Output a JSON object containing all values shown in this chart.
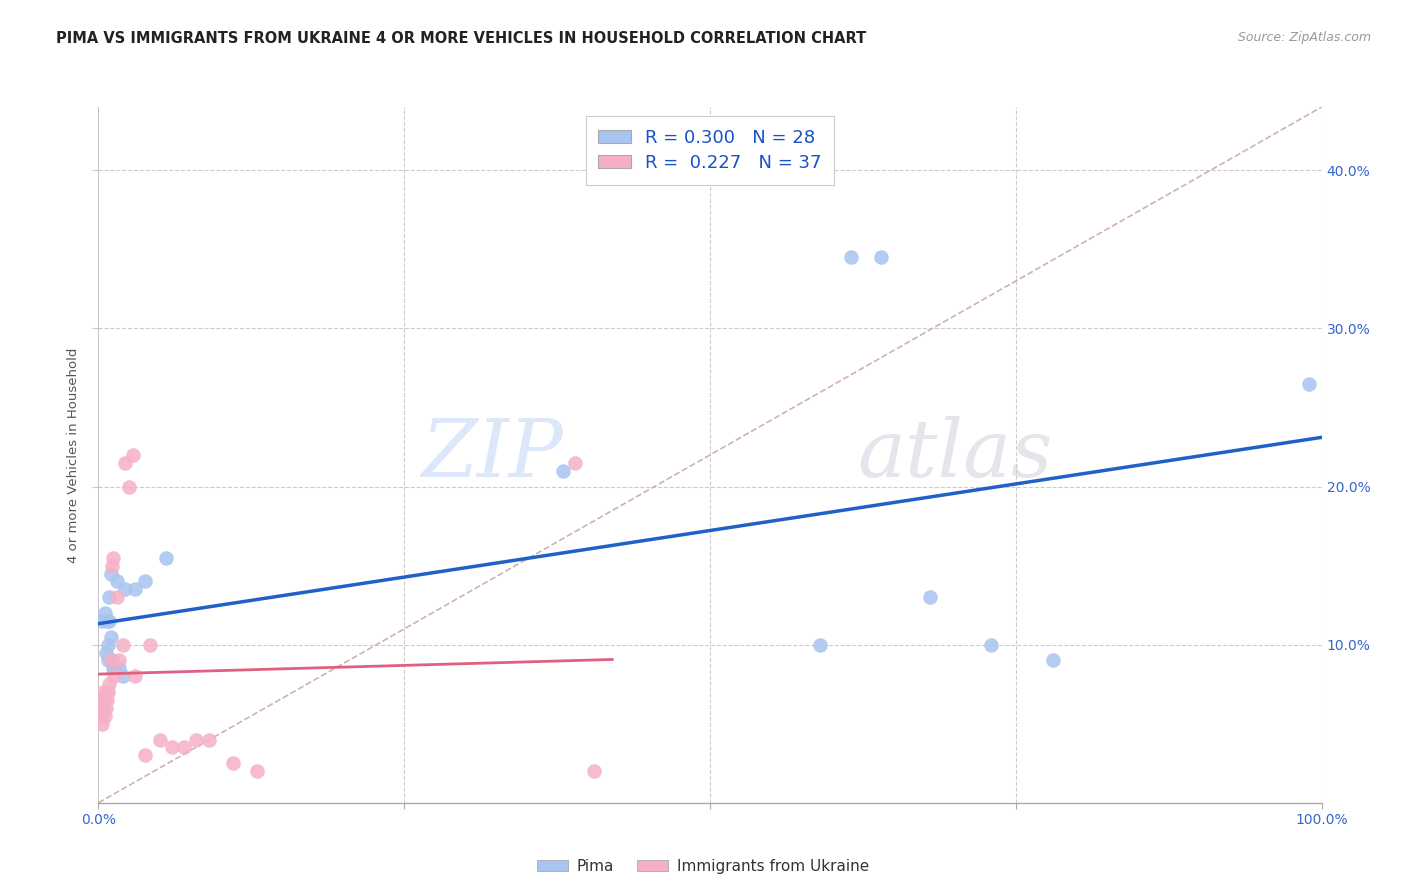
{
  "title": "PIMA VS IMMIGRANTS FROM UKRAINE 4 OR MORE VEHICLES IN HOUSEHOLD CORRELATION CHART",
  "source": "Source: ZipAtlas.com",
  "ylabel": "4 or more Vehicles in Household",
  "xmin": 0.0,
  "xmax": 1.0,
  "ymin": 0.0,
  "ymax": 0.44,
  "pima_r": 0.3,
  "pima_n": 28,
  "ukraine_r": 0.227,
  "ukraine_n": 37,
  "pima_color": "#a8c4f0",
  "ukraine_color": "#f5b0c5",
  "pima_line_color": "#2060c8",
  "ukraine_line_color": "#e06080",
  "diagonal_color": "#d0b0b8",
  "legend_label_pima": "Pima",
  "legend_label_ukraine": "Immigrants from Ukraine",
  "watermark_zip": "ZIP",
  "watermark_atlas": "atlas",
  "pima_x": [
    0.003,
    0.005,
    0.006,
    0.007,
    0.008,
    0.008,
    0.009,
    0.009,
    0.01,
    0.01,
    0.011,
    0.012,
    0.013,
    0.015,
    0.017,
    0.02,
    0.022,
    0.03,
    0.038,
    0.055,
    0.38,
    0.59,
    0.615,
    0.64,
    0.68,
    0.73,
    0.78,
    0.99
  ],
  "pima_y": [
    0.115,
    0.12,
    0.095,
    0.115,
    0.09,
    0.1,
    0.13,
    0.115,
    0.145,
    0.105,
    0.09,
    0.085,
    0.085,
    0.14,
    0.085,
    0.08,
    0.135,
    0.135,
    0.14,
    0.155,
    0.21,
    0.1,
    0.345,
    0.345,
    0.13,
    0.1,
    0.09,
    0.265
  ],
  "ukraine_x": [
    0.001,
    0.001,
    0.002,
    0.002,
    0.003,
    0.003,
    0.004,
    0.004,
    0.005,
    0.005,
    0.006,
    0.007,
    0.007,
    0.008,
    0.009,
    0.01,
    0.011,
    0.012,
    0.013,
    0.015,
    0.017,
    0.02,
    0.022,
    0.025,
    0.028,
    0.03,
    0.038,
    0.042,
    0.05,
    0.06,
    0.07,
    0.08,
    0.09,
    0.11,
    0.13,
    0.39,
    0.405
  ],
  "ukraine_y": [
    0.055,
    0.065,
    0.055,
    0.065,
    0.05,
    0.06,
    0.06,
    0.07,
    0.055,
    0.065,
    0.06,
    0.07,
    0.065,
    0.07,
    0.075,
    0.09,
    0.15,
    0.155,
    0.08,
    0.13,
    0.09,
    0.1,
    0.215,
    0.2,
    0.22,
    0.08,
    0.03,
    0.1,
    0.04,
    0.035,
    0.035,
    0.04,
    0.04,
    0.025,
    0.02,
    0.215,
    0.02
  ]
}
